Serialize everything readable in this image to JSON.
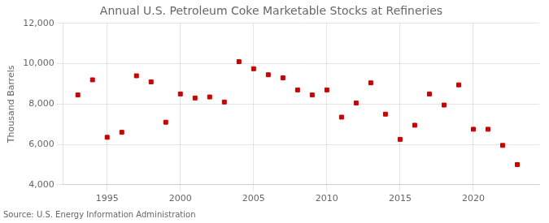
{
  "chart_data": {
    "type": "scatter",
    "title": "Annual U.S. Petroleum Coke Marketable Stocks at Refineries",
    "ylabel": "Thousand Barrels",
    "source": "Source: U.S. Energy Information Administration",
    "x": [
      1993,
      1994,
      1995,
      1996,
      1997,
      1998,
      1999,
      2000,
      2001,
      2002,
      2003,
      2004,
      2005,
      2006,
      2007,
      2008,
      2009,
      2010,
      2011,
      2012,
      2013,
      2014,
      2015,
      2016,
      2017,
      2018,
      2019,
      2020,
      2021,
      2022,
      2023
    ],
    "values": [
      8450,
      9200,
      6350,
      6600,
      9400,
      9100,
      7100,
      8500,
      8300,
      8350,
      8100,
      10100,
      9750,
      9450,
      9300,
      8700,
      8450,
      8700,
      7350,
      8050,
      9050,
      7500,
      6250,
      6950,
      8500,
      7950,
      8950,
      6750,
      6750,
      5950,
      5000
    ],
    "color": "#cc0000",
    "marker": "square",
    "xlim": [
      1992.0,
      2024.5
    ],
    "xticks": [
      1995,
      2000,
      2005,
      2010,
      2015,
      2020
    ],
    "ylim": [
      4000,
      12000
    ],
    "yticks": [
      {
        "value": 4000,
        "label": "4,000"
      },
      {
        "value": 6000,
        "label": "6,000"
      },
      {
        "value": 8000,
        "label": "8,000"
      },
      {
        "value": 10000,
        "label": "10,000"
      },
      {
        "value": 12000,
        "label": "12,000"
      }
    ],
    "grid": true
  }
}
